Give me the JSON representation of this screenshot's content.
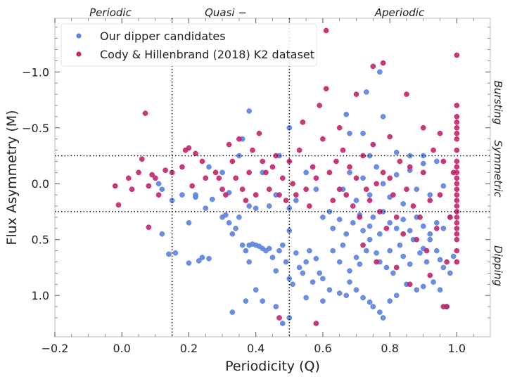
{
  "chart_data": {
    "type": "scatter",
    "title": "",
    "xlabel": "Periodicity (Q)",
    "ylabel": "Flux Asymmetry (M)",
    "xlim": [
      -0.2,
      1.1
    ],
    "ylim": [
      1.37,
      -1.48
    ],
    "y_inverted": true,
    "x_ticks": [
      -0.2,
      0.0,
      0.2,
      0.4,
      0.6,
      0.8,
      1.0
    ],
    "x_tick_labels": [
      "−0.2",
      "0.0",
      "0.2",
      "0.4",
      "0.6",
      "0.8",
      "1.0"
    ],
    "y_ticks": [
      -1.0,
      -0.5,
      0.0,
      0.5,
      1.0
    ],
    "y_tick_labels": [
      "−1.0",
      "−0.5",
      "0.0",
      "0.5",
      "1.0"
    ],
    "grid": false,
    "legend_position": "top-left",
    "reference_lines": {
      "vertical_q": [
        0.15,
        0.5
      ],
      "horizontal_m": [
        -0.25,
        0.25
      ],
      "style": "dotted"
    },
    "region_labels_top": [
      "Periodic",
      "Quasi −",
      "Aperiodic"
    ],
    "region_labels_right": [
      "Bursting",
      "Symmetric",
      "Dipping"
    ],
    "series": [
      {
        "name": "Our dipper candidates",
        "color": "#5b82e0",
        "points": [
          [
            0.12,
            0.45
          ],
          [
            0.14,
            0.63
          ],
          [
            0.16,
            0.62
          ],
          [
            0.2,
            0.71
          ],
          [
            0.23,
            0.69
          ],
          [
            0.24,
            0.66
          ],
          [
            0.26,
            0.67
          ],
          [
            0.25,
            0.22
          ],
          [
            0.22,
            0.12
          ],
          [
            0.27,
            0.14
          ],
          [
            0.3,
            0.3
          ],
          [
            0.31,
            0.28
          ],
          [
            0.32,
            0.35
          ],
          [
            0.33,
            0.45
          ],
          [
            0.34,
            0.4
          ],
          [
            0.35,
            0.3
          ],
          [
            0.36,
            0.55
          ],
          [
            0.37,
            0.6
          ],
          [
            0.38,
            0.7
          ],
          [
            0.38,
            0.55
          ],
          [
            0.39,
            0.54
          ],
          [
            0.4,
            0.55
          ],
          [
            0.41,
            0.56
          ],
          [
            0.42,
            0.58
          ],
          [
            0.43,
            0.6
          ],
          [
            0.44,
            0.58
          ],
          [
            0.45,
            0.66
          ],
          [
            0.46,
            0.78
          ],
          [
            0.47,
            0.6
          ],
          [
            0.48,
            0.55
          ],
          [
            0.49,
            0.7
          ],
          [
            0.5,
            0.42
          ],
          [
            0.5,
            0.85
          ],
          [
            0.51,
            0.9
          ],
          [
            0.52,
            0.62
          ],
          [
            0.53,
            0.75
          ],
          [
            0.54,
            0.8
          ],
          [
            0.55,
            0.7
          ],
          [
            0.56,
            0.6
          ],
          [
            0.57,
            0.88
          ],
          [
            0.58,
            0.67
          ],
          [
            0.59,
            0.8
          ],
          [
            0.6,
            0.85
          ],
          [
            0.33,
            1.15
          ],
          [
            0.37,
            1.05
          ],
          [
            0.4,
            0.95
          ],
          [
            0.42,
            1.05
          ],
          [
            0.46,
            1.1
          ],
          [
            0.48,
            1.25
          ],
          [
            0.5,
            1.2
          ],
          [
            0.55,
            1.02
          ],
          [
            0.6,
            1.05
          ],
          [
            0.62,
            0.95
          ],
          [
            0.65,
            0.98
          ],
          [
            0.67,
            1.0
          ],
          [
            0.68,
            0.88
          ],
          [
            0.7,
            0.95
          ],
          [
            0.72,
            1.02
          ],
          [
            0.74,
            1.06
          ],
          [
            0.75,
            1.1
          ],
          [
            0.77,
            1.15
          ],
          [
            0.78,
            1.2
          ],
          [
            0.8,
            1.05
          ],
          [
            0.82,
            1.0
          ],
          [
            0.85,
            0.9
          ],
          [
            0.88,
            0.95
          ],
          [
            0.9,
            0.92
          ],
          [
            0.93,
            0.88
          ],
          [
            0.95,
            0.95
          ],
          [
            0.97,
            1.1
          ],
          [
            0.63,
            0.6
          ],
          [
            0.65,
            0.7
          ],
          [
            0.66,
            0.55
          ],
          [
            0.68,
            0.78
          ],
          [
            0.7,
            0.66
          ],
          [
            0.71,
            0.72
          ],
          [
            0.73,
            0.6
          ],
          [
            0.74,
            0.5
          ],
          [
            0.76,
            0.62
          ],
          [
            0.77,
            0.7
          ],
          [
            0.79,
            0.75
          ],
          [
            0.8,
            0.6
          ],
          [
            0.81,
            0.8
          ],
          [
            0.83,
            0.55
          ],
          [
            0.84,
            0.65
          ],
          [
            0.86,
            0.72
          ],
          [
            0.87,
            0.5
          ],
          [
            0.89,
            0.62
          ],
          [
            0.9,
            0.58
          ],
          [
            0.91,
            0.7
          ],
          [
            0.92,
            0.5
          ],
          [
            0.94,
            0.6
          ],
          [
            0.95,
            0.68
          ],
          [
            0.96,
            0.75
          ],
          [
            0.98,
            0.8
          ],
          [
            0.99,
            0.65
          ],
          [
            0.6,
            0.3
          ],
          [
            0.62,
            0.25
          ],
          [
            0.63,
            0.4
          ],
          [
            0.65,
            0.32
          ],
          [
            0.67,
            0.45
          ],
          [
            0.69,
            0.35
          ],
          [
            0.71,
            0.28
          ],
          [
            0.72,
            0.42
          ],
          [
            0.74,
            0.38
          ],
          [
            0.75,
            0.3
          ],
          [
            0.77,
            0.45
          ],
          [
            0.78,
            0.25
          ],
          [
            0.8,
            0.35
          ],
          [
            0.82,
            0.4
          ],
          [
            0.84,
            0.32
          ],
          [
            0.86,
            0.42
          ],
          [
            0.88,
            0.3
          ],
          [
            0.9,
            0.38
          ],
          [
            0.92,
            0.45
          ],
          [
            0.94,
            0.35
          ],
          [
            0.96,
            0.4
          ],
          [
            0.98,
            0.3
          ],
          [
            0.66,
            0.05
          ],
          [
            0.68,
            -0.1
          ],
          [
            0.7,
            0.15
          ],
          [
            0.72,
            -0.05
          ],
          [
            0.74,
            0.1
          ],
          [
            0.76,
            -0.15
          ],
          [
            0.78,
            0.0
          ],
          [
            0.8,
            0.12
          ],
          [
            0.82,
            -0.08
          ],
          [
            0.84,
            0.18
          ],
          [
            0.86,
            -0.12
          ],
          [
            0.88,
            0.05
          ],
          [
            0.9,
            -0.18
          ],
          [
            0.92,
            0.1
          ],
          [
            0.94,
            -0.2
          ],
          [
            0.96,
            0.02
          ],
          [
            0.58,
            0.05
          ],
          [
            0.55,
            -0.1
          ],
          [
            0.52,
            0.15
          ],
          [
            0.44,
            0.2
          ],
          [
            0.42,
            -0.1
          ],
          [
            0.46,
            0.1
          ],
          [
            0.26,
            -0.15
          ],
          [
            0.3,
            -0.1
          ],
          [
            0.32,
            0.08
          ],
          [
            0.35,
            -0.25
          ],
          [
            0.36,
            -0.4
          ],
          [
            0.38,
            -0.65
          ],
          [
            0.5,
            -0.5
          ],
          [
            0.67,
            -0.62
          ],
          [
            0.68,
            -0.45
          ],
          [
            0.72,
            -0.45
          ],
          [
            0.78,
            -0.6
          ],
          [
            0.73,
            -0.82
          ],
          [
            0.77,
            -1.0
          ],
          [
            0.47,
            -0.25
          ],
          [
            0.74,
            -0.25
          ],
          [
            0.82,
            -0.28
          ],
          [
            0.86,
            -0.25
          ],
          [
            0.9,
            -0.25
          ],
          [
            0.11,
            0.0
          ],
          [
            0.12,
            0.05
          ],
          [
            0.15,
            0.15
          ],
          [
            0.18,
            0.1
          ],
          [
            0.2,
            0.35
          ],
          [
            0.22,
            0.1
          ],
          [
            0.38,
            0.2
          ],
          [
            0.4,
            0.22
          ],
          [
            0.5,
            0.22
          ]
        ]
      },
      {
        "name": "Cody & Hillenbrand (2018) K2 dataset",
        "color": "#c3246a",
        "points": [
          [
            -0.02,
            0.02
          ],
          [
            -0.01,
            0.19
          ],
          [
            0.02,
            -0.05
          ],
          [
            0.03,
            0.05
          ],
          [
            0.05,
            -0.1
          ],
          [
            0.06,
            -0.22
          ],
          [
            0.07,
            -0.63
          ],
          [
            0.08,
            0.39
          ],
          [
            0.08,
            0.02
          ],
          [
            0.09,
            -0.08
          ],
          [
            0.1,
            -0.05
          ],
          [
            0.11,
            0.1
          ],
          [
            0.13,
            -0.12
          ],
          [
            0.15,
            -0.1
          ],
          [
            0.18,
            -0.15
          ],
          [
            0.19,
            -0.3
          ],
          [
            0.2,
            -0.32
          ],
          [
            0.21,
            0.02
          ],
          [
            0.22,
            -0.27
          ],
          [
            0.24,
            -0.2
          ],
          [
            0.25,
            -0.05
          ],
          [
            0.28,
            -0.1
          ],
          [
            0.29,
            -0.05
          ],
          [
            0.3,
            0.05
          ],
          [
            0.31,
            0.1
          ],
          [
            0.32,
            -0.35
          ],
          [
            0.33,
            -0.2
          ],
          [
            0.34,
            -0.05
          ],
          [
            0.35,
            -0.4
          ],
          [
            0.36,
            0.05
          ],
          [
            0.37,
            0.15
          ],
          [
            0.38,
            -0.1
          ],
          [
            0.39,
            -0.3
          ],
          [
            0.4,
            0.1
          ],
          [
            0.41,
            -0.45
          ],
          [
            0.42,
            -0.2
          ],
          [
            0.43,
            -0.1
          ],
          [
            0.44,
            0.05
          ],
          [
            0.45,
            -0.15
          ],
          [
            0.46,
            -0.25
          ],
          [
            0.47,
            0.1
          ],
          [
            0.48,
            -0.05
          ],
          [
            0.49,
            0.15
          ],
          [
            0.5,
            -0.2
          ],
          [
            0.51,
            0.0
          ],
          [
            0.52,
            0.1
          ],
          [
            0.53,
            -0.3
          ],
          [
            0.54,
            -0.55
          ],
          [
            0.55,
            0.05
          ],
          [
            0.56,
            0.2
          ],
          [
            0.57,
            -0.15
          ],
          [
            0.58,
            -0.05
          ],
          [
            0.59,
            -0.7
          ],
          [
            0.6,
            -0.4
          ],
          [
            0.61,
            -1.37
          ],
          [
            0.62,
            -0.1
          ],
          [
            0.63,
            0.15
          ],
          [
            0.64,
            -0.2
          ],
          [
            0.65,
            0.05
          ],
          [
            0.66,
            -0.3
          ],
          [
            0.67,
            0.1
          ],
          [
            0.68,
            -0.15
          ],
          [
            0.69,
            0.2
          ],
          [
            0.7,
            -0.05
          ],
          [
            0.71,
            0.3
          ],
          [
            0.72,
            -0.25
          ],
          [
            0.73,
            0.05
          ],
          [
            0.74,
            0.15
          ],
          [
            0.75,
            -0.35
          ],
          [
            0.76,
            0.0
          ],
          [
            0.77,
            0.25
          ],
          [
            0.78,
            -0.1
          ],
          [
            0.79,
            0.4
          ],
          [
            0.8,
            -0.05
          ],
          [
            0.81,
            0.1
          ],
          [
            0.82,
            0.3
          ],
          [
            0.83,
            -0.2
          ],
          [
            0.84,
            0.45
          ],
          [
            0.85,
            0.05
          ],
          [
            0.86,
            -0.15
          ],
          [
            0.87,
            0.2
          ],
          [
            0.88,
            0.5
          ],
          [
            0.89,
            0.3
          ],
          [
            0.9,
            -0.1
          ],
          [
            0.91,
            0.6
          ],
          [
            0.92,
            0.15
          ],
          [
            0.93,
            -0.3
          ],
          [
            0.94,
            0.4
          ],
          [
            0.95,
            0.1
          ],
          [
            0.96,
            -0.2
          ],
          [
            0.97,
            0.7
          ],
          [
            0.98,
            0.3
          ],
          [
            0.99,
            -0.1
          ],
          [
            1.0,
            -1.15
          ],
          [
            1.0,
            -0.7
          ],
          [
            1.0,
            -0.6
          ],
          [
            1.0,
            -0.55
          ],
          [
            1.0,
            -0.5
          ],
          [
            1.0,
            -0.45
          ],
          [
            1.0,
            -0.4
          ],
          [
            1.0,
            -0.3
          ],
          [
            1.0,
            -0.2
          ],
          [
            1.0,
            -0.15
          ],
          [
            1.0,
            -0.1
          ],
          [
            1.0,
            -0.05
          ],
          [
            1.0,
            0.0
          ],
          [
            1.0,
            0.05
          ],
          [
            1.0,
            0.1
          ],
          [
            1.0,
            0.15
          ],
          [
            1.0,
            0.2
          ],
          [
            1.0,
            0.25
          ],
          [
            1.0,
            0.3
          ],
          [
            1.0,
            0.35
          ],
          [
            1.0,
            0.4
          ],
          [
            1.0,
            0.45
          ],
          [
            1.0,
            0.5
          ],
          [
            1.0,
            0.6
          ],
          [
            1.0,
            0.7
          ],
          [
            0.97,
            1.1
          ],
          [
            0.96,
            1.1
          ],
          [
            0.78,
            -1.08
          ],
          [
            0.58,
            1.25
          ],
          [
            0.47,
            1.2
          ],
          [
            0.61,
            -0.85
          ],
          [
            0.65,
            -0.5
          ],
          [
            0.7,
            -0.8
          ],
          [
            0.75,
            -1.05
          ],
          [
            0.85,
            -0.8
          ],
          [
            0.95,
            -0.45
          ],
          [
            0.9,
            -0.5
          ],
          [
            0.8,
            -0.42
          ],
          [
            0.72,
            0.55
          ],
          [
            0.76,
            0.7
          ],
          [
            0.82,
            0.75
          ],
          [
            0.86,
            0.9
          ],
          [
            0.92,
            0.82
          ]
        ]
      }
    ]
  }
}
